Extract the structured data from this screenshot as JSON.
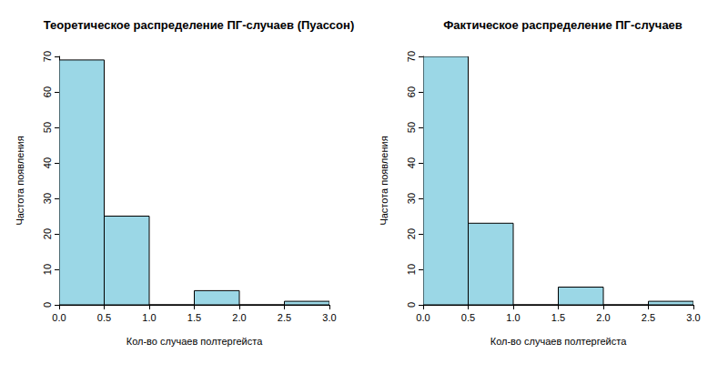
{
  "chart_data": [
    {
      "type": "histogram",
      "title": "Теоретическое распределение ПГ-случаев (Пуассон)",
      "x_label": "Кол-во случаев полтергейста",
      "y_label": "Частота появления",
      "bins": [
        0,
        0.5,
        1,
        1.5,
        2,
        2.5,
        3
      ],
      "values": [
        69,
        25,
        0,
        4,
        0,
        1
      ],
      "color": "#9bd7e6",
      "xlim": [
        0,
        3
      ],
      "ylim": [
        0,
        70
      ],
      "xticks": [
        {
          "value": 0,
          "label": "0.0"
        },
        0.5,
        {
          "value": 1,
          "label": "1.0"
        },
        1.5,
        {
          "value": 2,
          "label": "2.0"
        },
        2.5,
        {
          "value": 3,
          "label": "3.0"
        }
      ],
      "yticks": [
        0,
        10,
        20,
        30,
        40,
        50,
        60,
        70
      ],
      "grid": false
    },
    {
      "type": "histogram",
      "title": "Фактическое распределение ПГ-случаев",
      "x_label": "Кол-во случаев полтергейста",
      "y_label": "Частота появления",
      "bins": [
        0,
        0.5,
        1,
        1.5,
        2,
        2.5,
        3
      ],
      "values": [
        70,
        23,
        0,
        5,
        0,
        1
      ],
      "color": "#9bd7e6",
      "xlim": [
        0,
        3
      ],
      "ylim": [
        0,
        70
      ],
      "xticks": [
        {
          "value": 0,
          "label": "0.0"
        },
        0.5,
        {
          "value": 1,
          "label": "1.0"
        },
        1.5,
        {
          "value": 2,
          "label": "2.0"
        },
        2.5,
        {
          "value": 3,
          "label": "3.0"
        }
      ],
      "yticks": [
        0,
        10,
        20,
        30,
        40,
        50,
        60,
        70
      ],
      "grid": false
    }
  ]
}
